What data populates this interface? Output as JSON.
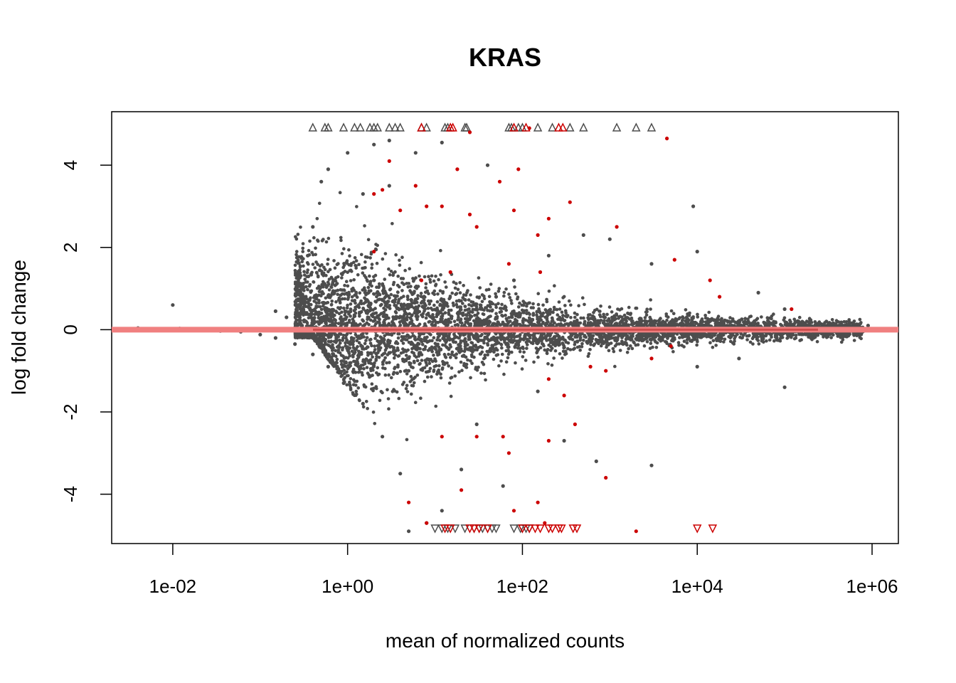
{
  "chart_data": {
    "type": "scatter",
    "title": "KRAS",
    "xlabel": "mean of normalized counts",
    "ylabel": "log fold change",
    "x_scale": "log10",
    "xlim": [
      0.002,
      2000000
    ],
    "ylim": [
      -5.2,
      5.3
    ],
    "x_ticks": [
      {
        "value": 0.01,
        "label": "1e-02"
      },
      {
        "value": 1,
        "label": "1e+00"
      },
      {
        "value": 100,
        "label": "1e+02"
      },
      {
        "value": 10000,
        "label": "1e+04"
      },
      {
        "value": 1000000,
        "label": "1e+06"
      }
    ],
    "y_ticks": [
      {
        "value": -4,
        "label": "-4"
      },
      {
        "value": -2,
        "label": "-2"
      },
      {
        "value": 0,
        "label": "0"
      },
      {
        "value": 2,
        "label": "2"
      },
      {
        "value": 4,
        "label": "4"
      }
    ],
    "reference_line": {
      "y": 0
    },
    "grid": false,
    "legend": "none",
    "colors": {
      "nonsignificant": "#4d4d4d",
      "significant": "#cc0000",
      "reference_line": "#f08080",
      "reference_core": "#b22222"
    },
    "series": [
      {
        "values_sampled": true,
        "points": [
          [
            0.004,
            0.04
          ],
          [
            0.007,
            0.02
          ],
          [
            0.012,
            0.03
          ],
          [
            0.02,
            0.01
          ],
          [
            0.035,
            -0.03
          ],
          [
            0.06,
            -0.05
          ],
          [
            0.1,
            -0.12
          ],
          [
            0.15,
            -0.2
          ],
          [
            0.25,
            -0.35
          ],
          [
            0.4,
            -0.6
          ],
          [
            0.6,
            -0.9
          ],
          [
            0.9,
            -1.3
          ],
          [
            1.5,
            -1.8
          ],
          [
            2.5,
            -2.6
          ],
          [
            4,
            -3.5
          ],
          [
            5,
            -4.9
          ],
          [
            0.2,
            0.3
          ],
          [
            0.3,
            0.8
          ],
          [
            0.35,
            1.8
          ],
          [
            0.4,
            2.5
          ],
          [
            0.5,
            3.6
          ],
          [
            0.6,
            3.9
          ],
          [
            1,
            4.3
          ],
          [
            2,
            4.5
          ],
          [
            3,
            4.6
          ],
          [
            6,
            4.3
          ],
          [
            12,
            4.55
          ],
          [
            0.01,
            0.6
          ],
          [
            0.15,
            0.45
          ],
          [
            40,
            4.0
          ],
          [
            80,
            1.2
          ],
          [
            200,
            1.8
          ],
          [
            500,
            2.3
          ],
          [
            1000,
            2.2
          ],
          [
            3000,
            1.6
          ],
          [
            9000,
            3.0
          ],
          [
            10000,
            1.9
          ],
          [
            50000,
            0.9
          ],
          [
            100000,
            0.5
          ],
          [
            300000,
            0.2
          ],
          [
            900000,
            0.1
          ],
          [
            200000,
            -0.2
          ],
          [
            100000,
            -1.4
          ],
          [
            30000,
            -0.7
          ],
          [
            10000,
            -0.9
          ],
          [
            3000,
            -3.3
          ],
          [
            700,
            -3.2
          ],
          [
            300,
            -2.7
          ],
          [
            60,
            -3.8
          ],
          [
            20,
            -3.4
          ],
          [
            12,
            -4.4
          ],
          [
            8,
            -4.7
          ],
          [
            30,
            -2.3
          ],
          [
            150,
            -1.5
          ],
          [
            2,
            1.2
          ],
          [
            5,
            -1.0
          ],
          [
            50,
            0.8
          ],
          [
            1.5,
            3.3
          ],
          [
            3,
            3.5
          ]
        ],
        "up_out": [
          0.4,
          0.55,
          0.6,
          0.9,
          1.2,
          1.4,
          1.8,
          2,
          2.2,
          3,
          3.5,
          4,
          7,
          8,
          13,
          14,
          22,
          23,
          70,
          75,
          90,
          100,
          150,
          220,
          350,
          500,
          1200,
          2000,
          3000
        ],
        "down_out": [
          10,
          12,
          14,
          17,
          22,
          28,
          32,
          35,
          40,
          45,
          50,
          80,
          95,
          100,
          110,
          120
        ]
      },
      {
        "values_sampled": true,
        "points": [
          [
            3,
            4.1
          ],
          [
            2.5,
            3.4
          ],
          [
            6,
            3.5
          ],
          [
            2,
            3.3
          ],
          [
            4,
            2.9
          ],
          [
            8,
            3.0
          ],
          [
            12,
            3.0
          ],
          [
            18,
            3.9
          ],
          [
            25,
            2.8
          ],
          [
            30,
            2.5
          ],
          [
            55,
            3.6
          ],
          [
            90,
            3.9
          ],
          [
            80,
            2.9
          ],
          [
            150,
            2.3
          ],
          [
            200,
            2.7
          ],
          [
            350,
            3.1
          ],
          [
            1200,
            2.5
          ],
          [
            4500,
            4.65
          ],
          [
            70,
            1.6
          ],
          [
            160,
            1.4
          ],
          [
            5500,
            1.7
          ],
          [
            14000,
            1.2
          ],
          [
            18000,
            0.8
          ],
          [
            120000,
            0.5
          ],
          [
            2,
            1.9
          ],
          [
            15,
            1.4
          ],
          [
            7,
            1.2
          ],
          [
            120,
            4.9
          ],
          [
            25,
            4.8
          ],
          [
            900,
            -1.0
          ],
          [
            600,
            -0.9
          ],
          [
            3000,
            -0.7
          ],
          [
            5000,
            -0.4
          ],
          [
            400,
            -2.3
          ],
          [
            200,
            -2.7
          ],
          [
            300,
            -1.6
          ],
          [
            60,
            -2.6
          ],
          [
            70,
            -3.0
          ],
          [
            80,
            -4.4
          ],
          [
            150,
            -4.2
          ],
          [
            180,
            -4.7
          ],
          [
            2000,
            -4.9
          ],
          [
            900,
            -3.6
          ],
          [
            20,
            -3.9
          ],
          [
            12,
            -2.6
          ],
          [
            5,
            -4.2
          ],
          [
            8,
            -4.7
          ],
          [
            200,
            -1.2
          ],
          [
            30,
            -2.6
          ]
        ],
        "up_out": [
          7,
          15,
          16,
          80,
          110,
          260,
          290
        ],
        "down_out": [
          13,
          15,
          25,
          28,
          32,
          40,
          100,
          120,
          140,
          160,
          200,
          220,
          260,
          280,
          380,
          420,
          10000,
          15000
        ]
      }
    ]
  }
}
